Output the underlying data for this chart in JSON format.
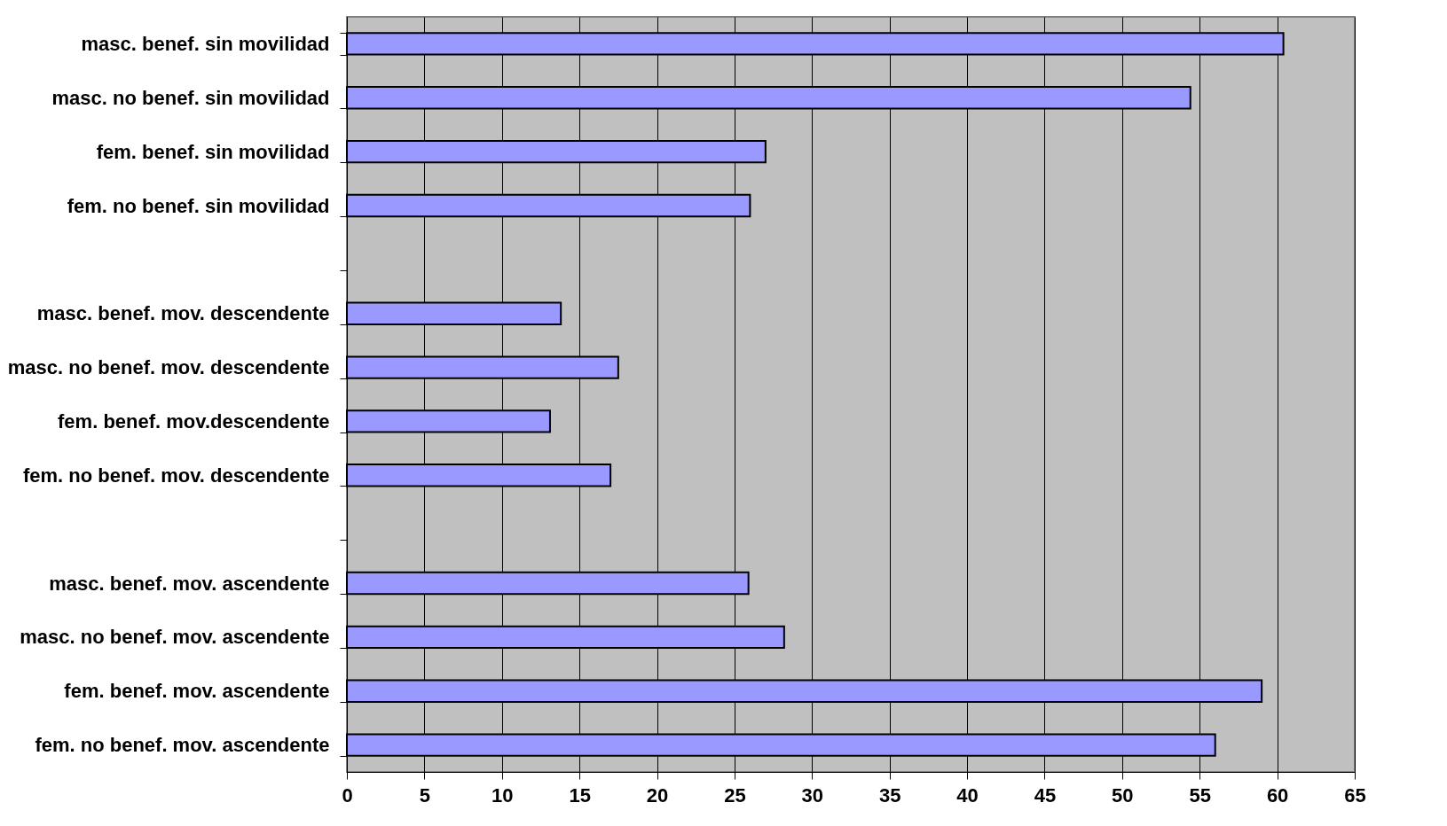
{
  "chart_data": {
    "type": "bar",
    "orientation": "horizontal",
    "categories": [
      "masc. benef. sin movilidad",
      "masc. no benef. sin movilidad",
      "fem. benef. sin movilidad",
      "fem. no benef. sin movilidad",
      null,
      "masc. benef. mov. descendente",
      "masc. no benef. mov. descendente",
      "fem. benef. mov.descendente",
      "fem. no benef. mov. descendente",
      null,
      "masc. benef. mov. ascendente",
      "masc. no benef. mov. ascendente",
      "fem. benef. mov. ascendente",
      "fem. no benef. mov. ascendente"
    ],
    "values": [
      60.4,
      54.4,
      27.0,
      26.0,
      null,
      13.8,
      17.5,
      13.1,
      17.0,
      null,
      25.9,
      28.2,
      59.0,
      56.0
    ],
    "color": "#9999ff",
    "xlim": [
      0,
      65
    ],
    "xticks": [
      0,
      5,
      10,
      15,
      20,
      25,
      30,
      35,
      40,
      45,
      50,
      55,
      60,
      65
    ],
    "grid": "x"
  }
}
